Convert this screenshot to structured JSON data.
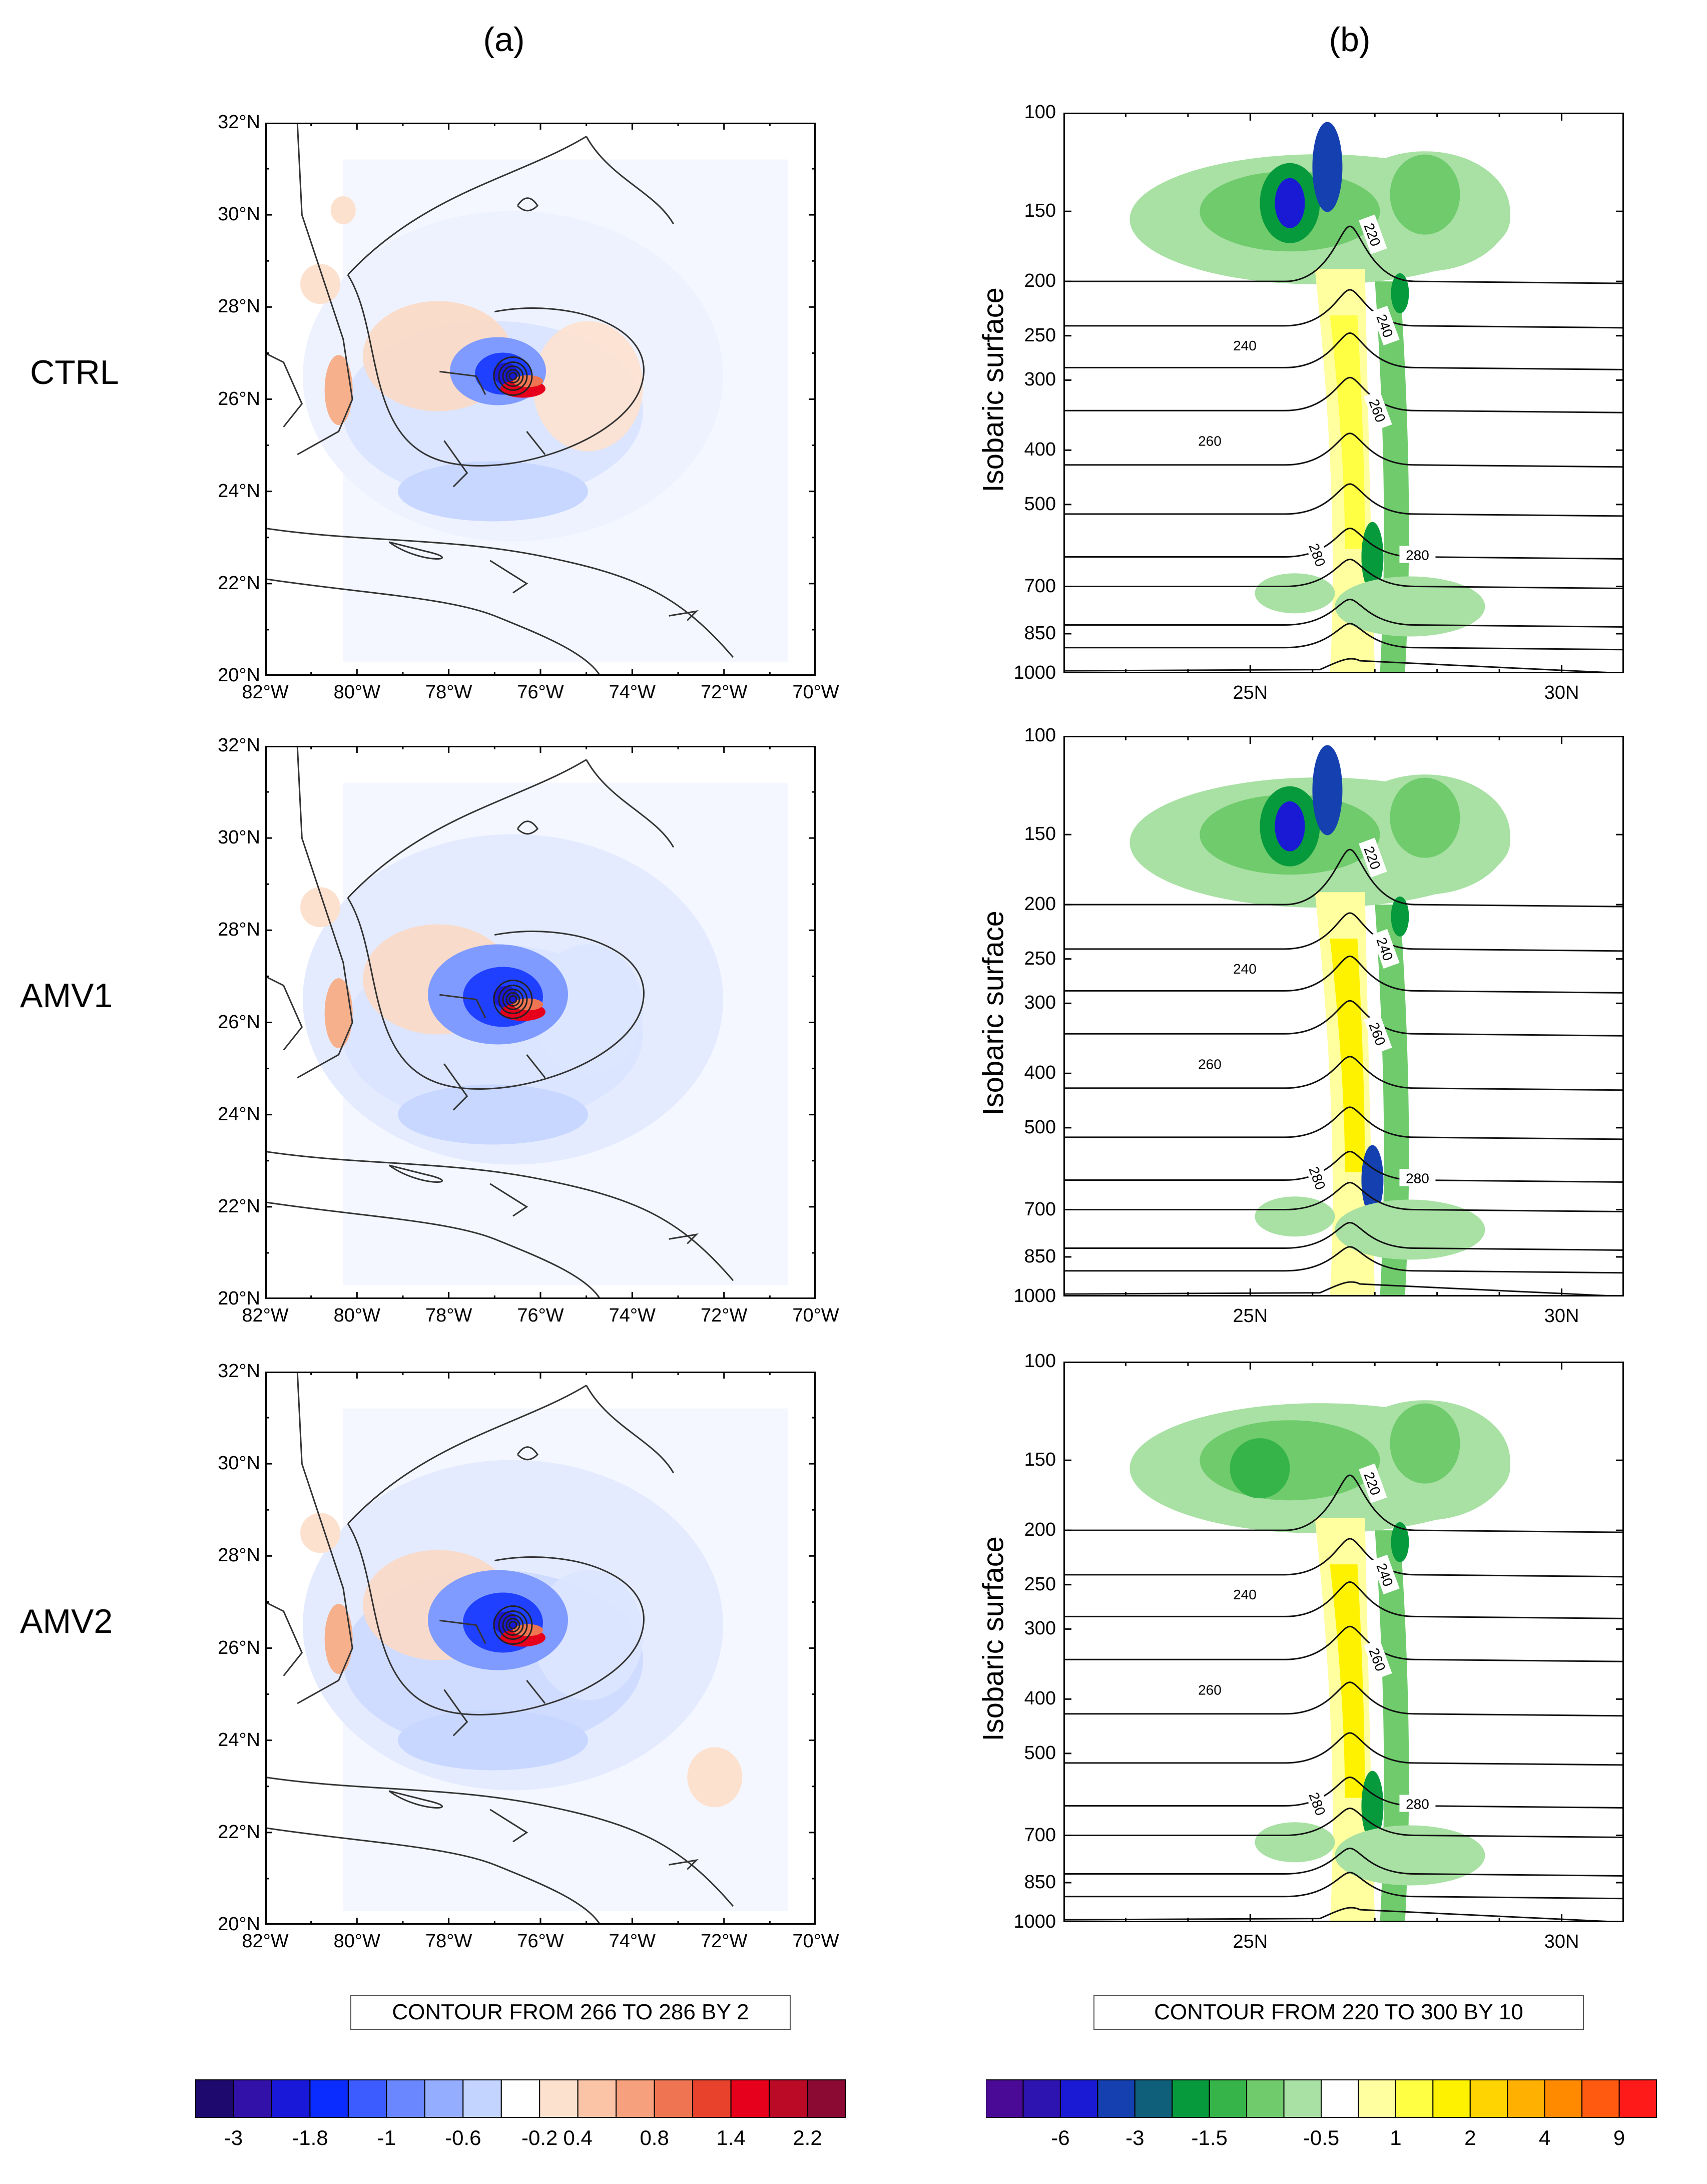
{
  "column_titles": [
    "(a)",
    "(b)"
  ],
  "row_labels": [
    "CTRL",
    "AMV1",
    "AMV2"
  ],
  "chart_data": [
    {
      "type": "heatmap",
      "panel": "map",
      "rows": [
        "CTRL",
        "AMV1",
        "AMV2"
      ],
      "x_ticks": [
        "82°W",
        "80°W",
        "78°W",
        "76°W",
        "74°W",
        "72°W",
        "70°W"
      ],
      "y_ticks": [
        "32°N",
        "30°N",
        "28°N",
        "26°N",
        "24°N",
        "22°N",
        "20°N"
      ],
      "xlim": [
        -82,
        -70
      ],
      "ylim": [
        20,
        32
      ],
      "storm_center": [
        -76.6,
        26.5
      ],
      "contour_info": "CONTOUR FROM 266 TO 286 BY 2",
      "colorbar": {
        "labels": [
          "-3",
          "-1.8",
          "-1",
          "-0.6",
          "-0.2",
          "0.4",
          "0.8",
          "1.4",
          "2.2"
        ],
        "colors": [
          "#1e0a6e",
          "#3211a8",
          "#1a18d8",
          "#0b2cff",
          "#3c5cff",
          "#6b87ff",
          "#95adff",
          "#c2d4ff",
          "#ffffff",
          "#fde1cf",
          "#fbc4a6",
          "#f7a07d",
          "#ef7552",
          "#e8422d",
          "#e6001b",
          "#bb0a26",
          "#8a0a33"
        ]
      }
    },
    {
      "type": "heatmap",
      "panel": "cross-section",
      "rows": [
        "CTRL",
        "AMV1",
        "AMV2"
      ],
      "ylabel": "Isobaric surface",
      "y_ticks": [
        "100",
        "150",
        "200",
        "250",
        "300",
        "400",
        "500",
        "700",
        "850",
        "1000"
      ],
      "x_ticks": [
        "25N",
        "30N"
      ],
      "xlim": [
        22,
        31
      ],
      "contour_labels": [
        "220",
        "240",
        "240",
        "260",
        "260",
        "280",
        "280"
      ],
      "contour_info": "CONTOUR FROM 220 TO 300 BY 10",
      "colorbar": {
        "labels": [
          "-6",
          "-3",
          "-1.5",
          "-0.5",
          "1",
          "2",
          "4",
          "9"
        ],
        "colors": [
          "#4b0a96",
          "#2d13b0",
          "#1a1ad4",
          "#1540b0",
          "#0f5f7a",
          "#079a3c",
          "#36b44a",
          "#6fcb6c",
          "#a8e1a3",
          "#ffffff",
          "#ffffa0",
          "#ffff44",
          "#fff200",
          "#ffd400",
          "#ffb000",
          "#ff8a00",
          "#ff5a10",
          "#ff1a1a"
        ]
      }
    }
  ]
}
